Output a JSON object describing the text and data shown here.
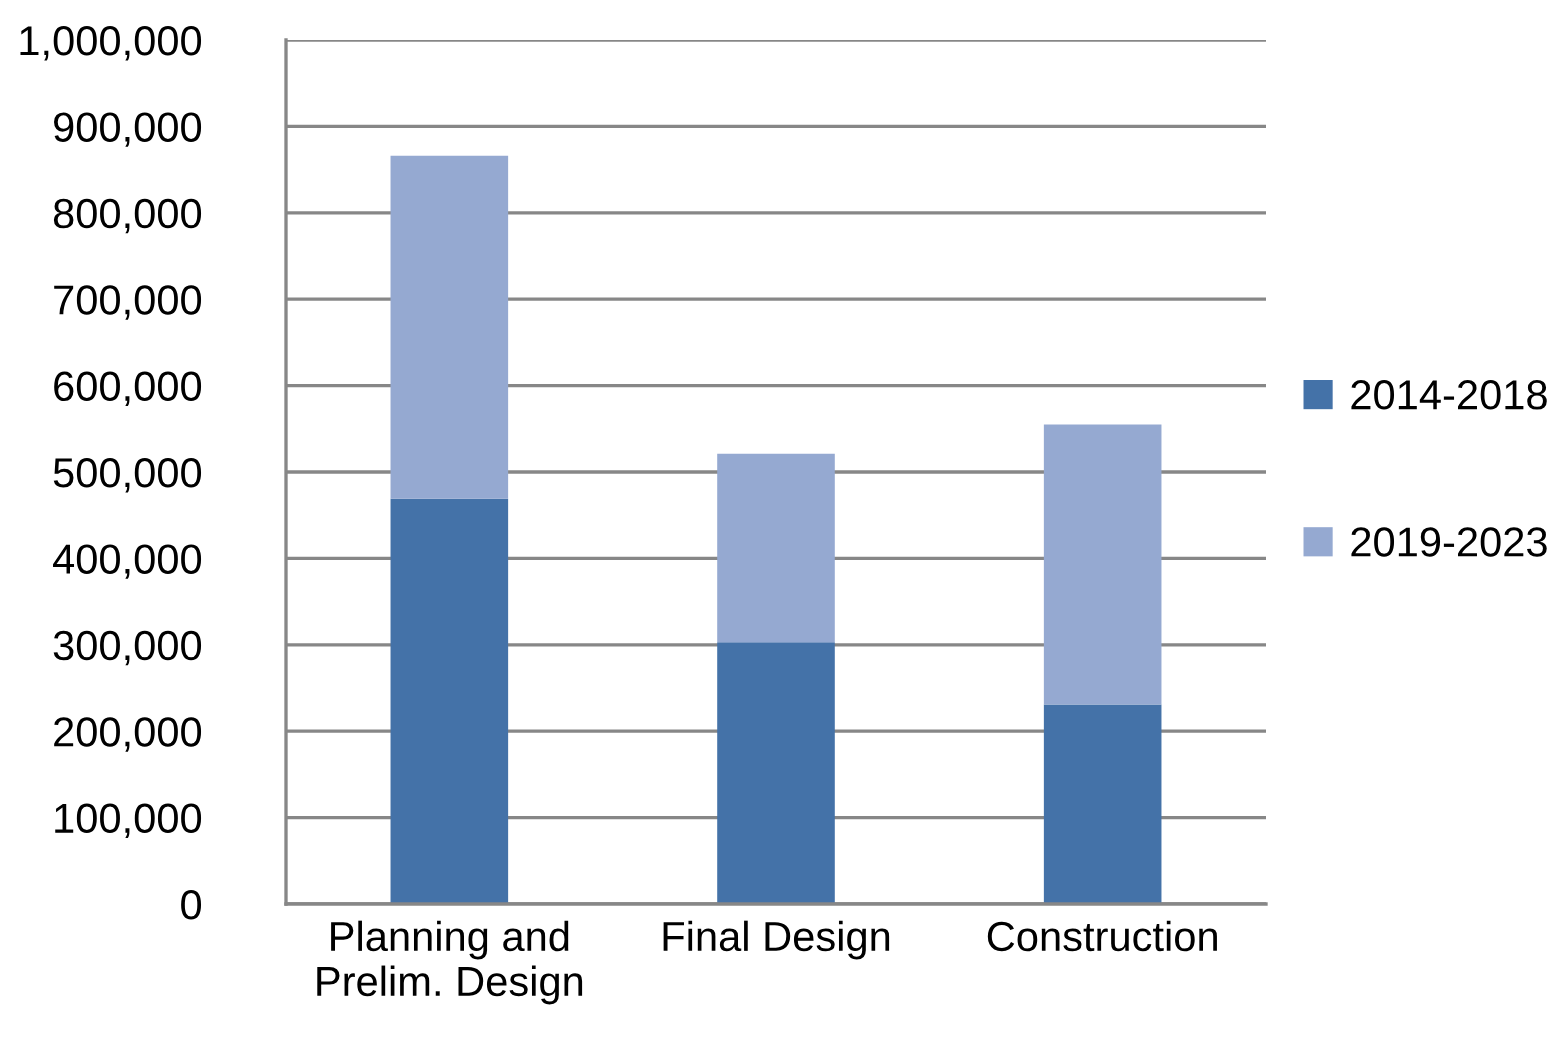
{
  "chart_data": {
    "type": "bar",
    "stacked": true,
    "categories": [
      "Planning and\nPrelim. Design",
      "Final Design",
      "Construction"
    ],
    "series": [
      {
        "name": "2014-2018",
        "color": "#4472a8",
        "values": [
          469000,
          303000,
          231000
        ]
      },
      {
        "name": "2019-2023",
        "color": "#95a9d1",
        "values": [
          397000,
          218000,
          324000
        ]
      }
    ],
    "ylim": [
      0,
      1000000
    ],
    "yticks": [
      {
        "value": 0,
        "label": "0"
      },
      {
        "value": 100000,
        "label": "100,000"
      },
      {
        "value": 200000,
        "label": "200,000"
      },
      {
        "value": 300000,
        "label": "300,000"
      },
      {
        "value": 400000,
        "label": "400,000"
      },
      {
        "value": 500000,
        "label": "500,000"
      },
      {
        "value": 600000,
        "label": "600,000"
      },
      {
        "value": 700000,
        "label": "700,000"
      },
      {
        "value": 800000,
        "label": "800,000"
      },
      {
        "value": 900000,
        "label": "900,000"
      },
      {
        "value": 1000000,
        "label": "1,000,000"
      }
    ],
    "grid": "y",
    "legend": "right"
  }
}
